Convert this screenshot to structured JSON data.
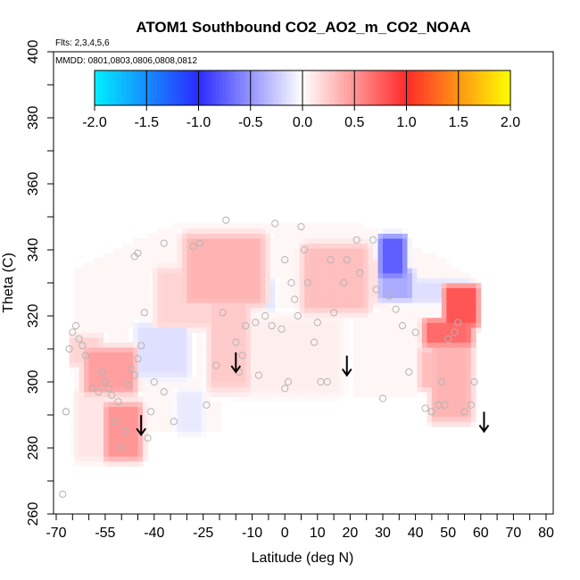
{
  "chart_data": {
    "type": "heatmap",
    "title": "ATOM1 Southbound CO2_AO2_m_CO2_NOAA",
    "flights_label": "Flts: 2,3,4,5,6",
    "dates_label": "MMDD: 0801,0803,0806,0808,0812",
    "xlabel": "Latitude (deg N)",
    "ylabel": "Theta (C)",
    "xlim": [
      -70,
      80
    ],
    "ylim": [
      260,
      400
    ],
    "xticks": [
      "-70",
      "-55",
      "-40",
      "-25",
      "-10",
      "0",
      "10",
      "20",
      "30",
      "40",
      "50",
      "60",
      "70",
      "80"
    ],
    "yticks": [
      "260",
      "280",
      "300",
      "320",
      "340",
      "360",
      "380",
      "400"
    ],
    "colorbar": {
      "min": -2.0,
      "max": 2.0,
      "ticks": [
        "-2.0",
        "-1.5",
        "-1.0",
        "-0.5",
        "0.0",
        "0.5",
        "1.0",
        "1.5",
        "2.0"
      ],
      "colors": {
        "c_neg2": "#00f0ff",
        "c_neg1": "#2a2aff",
        "c_zero": "#ffffff",
        "c_pos1": "#ff2a2a",
        "c_pos2": "#ffff00"
      }
    },
    "anomaly_patches": [
      {
        "lat": [
          -29,
          -8
        ],
        "theta": [
          325,
          343
        ],
        "value": 0.35
      },
      {
        "lat": [
          -22,
          -12
        ],
        "theta": [
          300,
          328
        ],
        "value": 0.25
      },
      {
        "lat": [
          -38,
          -22
        ],
        "theta": [
          318,
          333
        ],
        "value": 0.2
      },
      {
        "lat": [
          -15,
          15
        ],
        "theta": [
          298,
          318
        ],
        "value": 0.08
      },
      {
        "lat": [
          7,
          24
        ],
        "theta": [
          323,
          340
        ],
        "value": 0.3
      },
      {
        "lat": [
          24,
          31
        ],
        "theta": [
          325,
          336
        ],
        "value": 0.15
      },
      {
        "lat": [
          30,
          36
        ],
        "theta": [
          333,
          343
        ],
        "value": -0.75
      },
      {
        "lat": [
          30,
          38
        ],
        "theta": [
          326,
          333
        ],
        "value": -0.4
      },
      {
        "lat": [
          38,
          55
        ],
        "theta": [
          325,
          330
        ],
        "value": -0.15
      },
      {
        "lat": [
          50,
          58
        ],
        "theta": [
          318,
          328
        ],
        "value": 0.8
      },
      {
        "lat": [
          44,
          56
        ],
        "theta": [
          312,
          318
        ],
        "value": 0.7
      },
      {
        "lat": [
          46,
          56
        ],
        "theta": [
          290,
          310
        ],
        "value": 0.35
      },
      {
        "lat": [
          42,
          46
        ],
        "theta": [
          299,
          309
        ],
        "value": 0.3
      },
      {
        "lat": [
          -60,
          -47
        ],
        "theta": [
          298,
          309
        ],
        "value": 0.45
      },
      {
        "lat": [
          -54,
          -45
        ],
        "theta": [
          278,
          292
        ],
        "value": 0.5
      },
      {
        "lat": [
          -63,
          -55
        ],
        "theta": [
          278,
          296
        ],
        "value": 0.12
      },
      {
        "lat": [
          -44,
          -31
        ],
        "theta": [
          303,
          316
        ],
        "value": -0.15
      },
      {
        "lat": [
          -32,
          -26
        ],
        "theta": [
          286,
          296
        ],
        "value": -0.1
      },
      {
        "lat": [
          -8,
          -4
        ],
        "theta": [
          323,
          330
        ],
        "value": -0.12
      },
      {
        "lat": [
          -65,
          -57
        ],
        "theta": [
          306,
          313
        ],
        "value": 0.2
      }
    ],
    "observations": [
      [
        -68,
        266
      ],
      [
        -67,
        291
      ],
      [
        -67,
        291
      ],
      [
        -66,
        310
      ],
      [
        -65,
        315
      ],
      [
        -64,
        317
      ],
      [
        -63,
        313
      ],
      [
        -62,
        311
      ],
      [
        -61,
        308
      ],
      [
        -59,
        298
      ],
      [
        -57,
        297
      ],
      [
        -56,
        303
      ],
      [
        -55,
        300
      ],
      [
        -54,
        298
      ],
      [
        -53,
        296
      ],
      [
        -52,
        288
      ],
      [
        -51,
        294
      ],
      [
        -50,
        280
      ],
      [
        -49,
        285
      ],
      [
        -48,
        299
      ],
      [
        -47,
        304
      ],
      [
        -46,
        302
      ],
      [
        -45,
        307
      ],
      [
        -44,
        311
      ],
      [
        -42,
        283
      ],
      [
        -41,
        291
      ],
      [
        -40,
        300
      ],
      [
        -43,
        321
      ],
      [
        -46,
        338
      ],
      [
        -45,
        339
      ],
      [
        -37,
        342
      ],
      [
        -37,
        297
      ],
      [
        -34,
        288
      ],
      [
        -28,
        341
      ],
      [
        -26,
        342
      ],
      [
        -24,
        293
      ],
      [
        -21,
        305
      ],
      [
        -19,
        321
      ],
      [
        -18,
        349
      ],
      [
        -15,
        312
      ],
      [
        -14,
        303
      ],
      [
        -13,
        308
      ],
      [
        -12,
        317
      ],
      [
        -9,
        318
      ],
      [
        -8,
        302
      ],
      [
        -6,
        320
      ],
      [
        -4,
        317
      ],
      [
        -3,
        348
      ],
      [
        -1,
        316
      ],
      [
        0,
        337
      ],
      [
        0,
        298
      ],
      [
        1,
        300
      ],
      [
        2,
        330
      ],
      [
        3,
        325
      ],
      [
        4,
        320
      ],
      [
        5,
        347
      ],
      [
        6,
        340
      ],
      [
        7,
        330
      ],
      [
        9,
        312
      ],
      [
        10,
        318
      ],
      [
        11,
        300
      ],
      [
        13,
        300
      ],
      [
        14,
        337
      ],
      [
        15,
        321
      ],
      [
        18,
        330
      ],
      [
        19,
        337
      ],
      [
        22,
        343
      ],
      [
        23,
        333
      ],
      [
        27,
        343
      ],
      [
        28,
        328
      ],
      [
        30,
        295
      ],
      [
        32,
        326
      ],
      [
        34,
        322
      ],
      [
        36,
        317
      ],
      [
        38,
        303
      ],
      [
        40,
        315
      ],
      [
        43,
        292
      ],
      [
        45,
        291
      ],
      [
        47,
        293
      ],
      [
        48,
        300
      ],
      [
        49,
        293
      ],
      [
        50,
        313
      ],
      [
        52,
        315
      ],
      [
        53,
        318
      ],
      [
        55,
        291
      ],
      [
        57,
        293
      ],
      [
        58,
        300
      ]
    ],
    "arrows": [
      {
        "lat": -44,
        "theta": 284
      },
      {
        "lat": -15,
        "theta": 303
      },
      {
        "lat": 19,
        "theta": 302
      },
      {
        "lat": 61,
        "theta": 285
      }
    ]
  }
}
